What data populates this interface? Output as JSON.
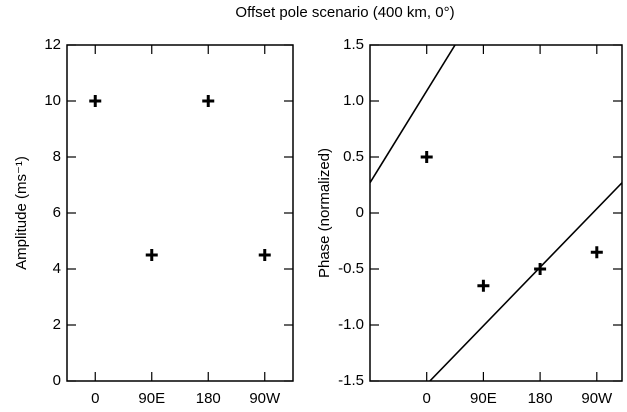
{
  "title": "Offset pole scenario (400 km, 0°)",
  "chart_data": [
    {
      "type": "scatter",
      "ylabel": "Amplitude (ms⁻¹)",
      "xlim": [
        -45,
        315
      ],
      "xticks": [
        0,
        {
          "value": 90,
          "label": "90E"
        },
        180,
        {
          "value": 270,
          "label": "90W"
        }
      ],
      "ylim": [
        0,
        12
      ],
      "yticks": [
        0,
        2,
        4,
        6,
        8,
        10,
        12
      ],
      "series": [
        {
          "style": "marker",
          "color": "#000000",
          "x": [
            0,
            90,
            180,
            270
          ],
          "values": [
            10,
            4.5,
            10,
            4.5
          ]
        }
      ]
    },
    {
      "type": "scatter",
      "ylabel": "Phase (normalized)",
      "xlim": [
        -90,
        310
      ],
      "xticks": [
        0,
        {
          "value": 90,
          "label": "90E"
        },
        180,
        {
          "value": 270,
          "label": "90W"
        }
      ],
      "ylim": [
        -1.5,
        1.5
      ],
      "yticks": [
        -1.5,
        {
          "value": -1,
          "label": "-1.0"
        },
        -0.5,
        0,
        0.5,
        {
          "value": 1,
          "label": "1.0"
        },
        1.5
      ],
      "series": [
        {
          "style": "marker",
          "color": "#000000",
          "x": [
            0,
            90,
            180,
            270
          ],
          "values": [
            0.5,
            -0.65,
            -0.5,
            -0.35
          ]
        },
        {
          "style": "line",
          "color": "#000000",
          "x": [
            -90,
            45
          ],
          "values": [
            0.27,
            1.5
          ]
        },
        {
          "style": "line",
          "color": "#000000",
          "x": [
            5,
            310
          ],
          "values": [
            -1.5,
            0.27
          ]
        }
      ]
    }
  ]
}
